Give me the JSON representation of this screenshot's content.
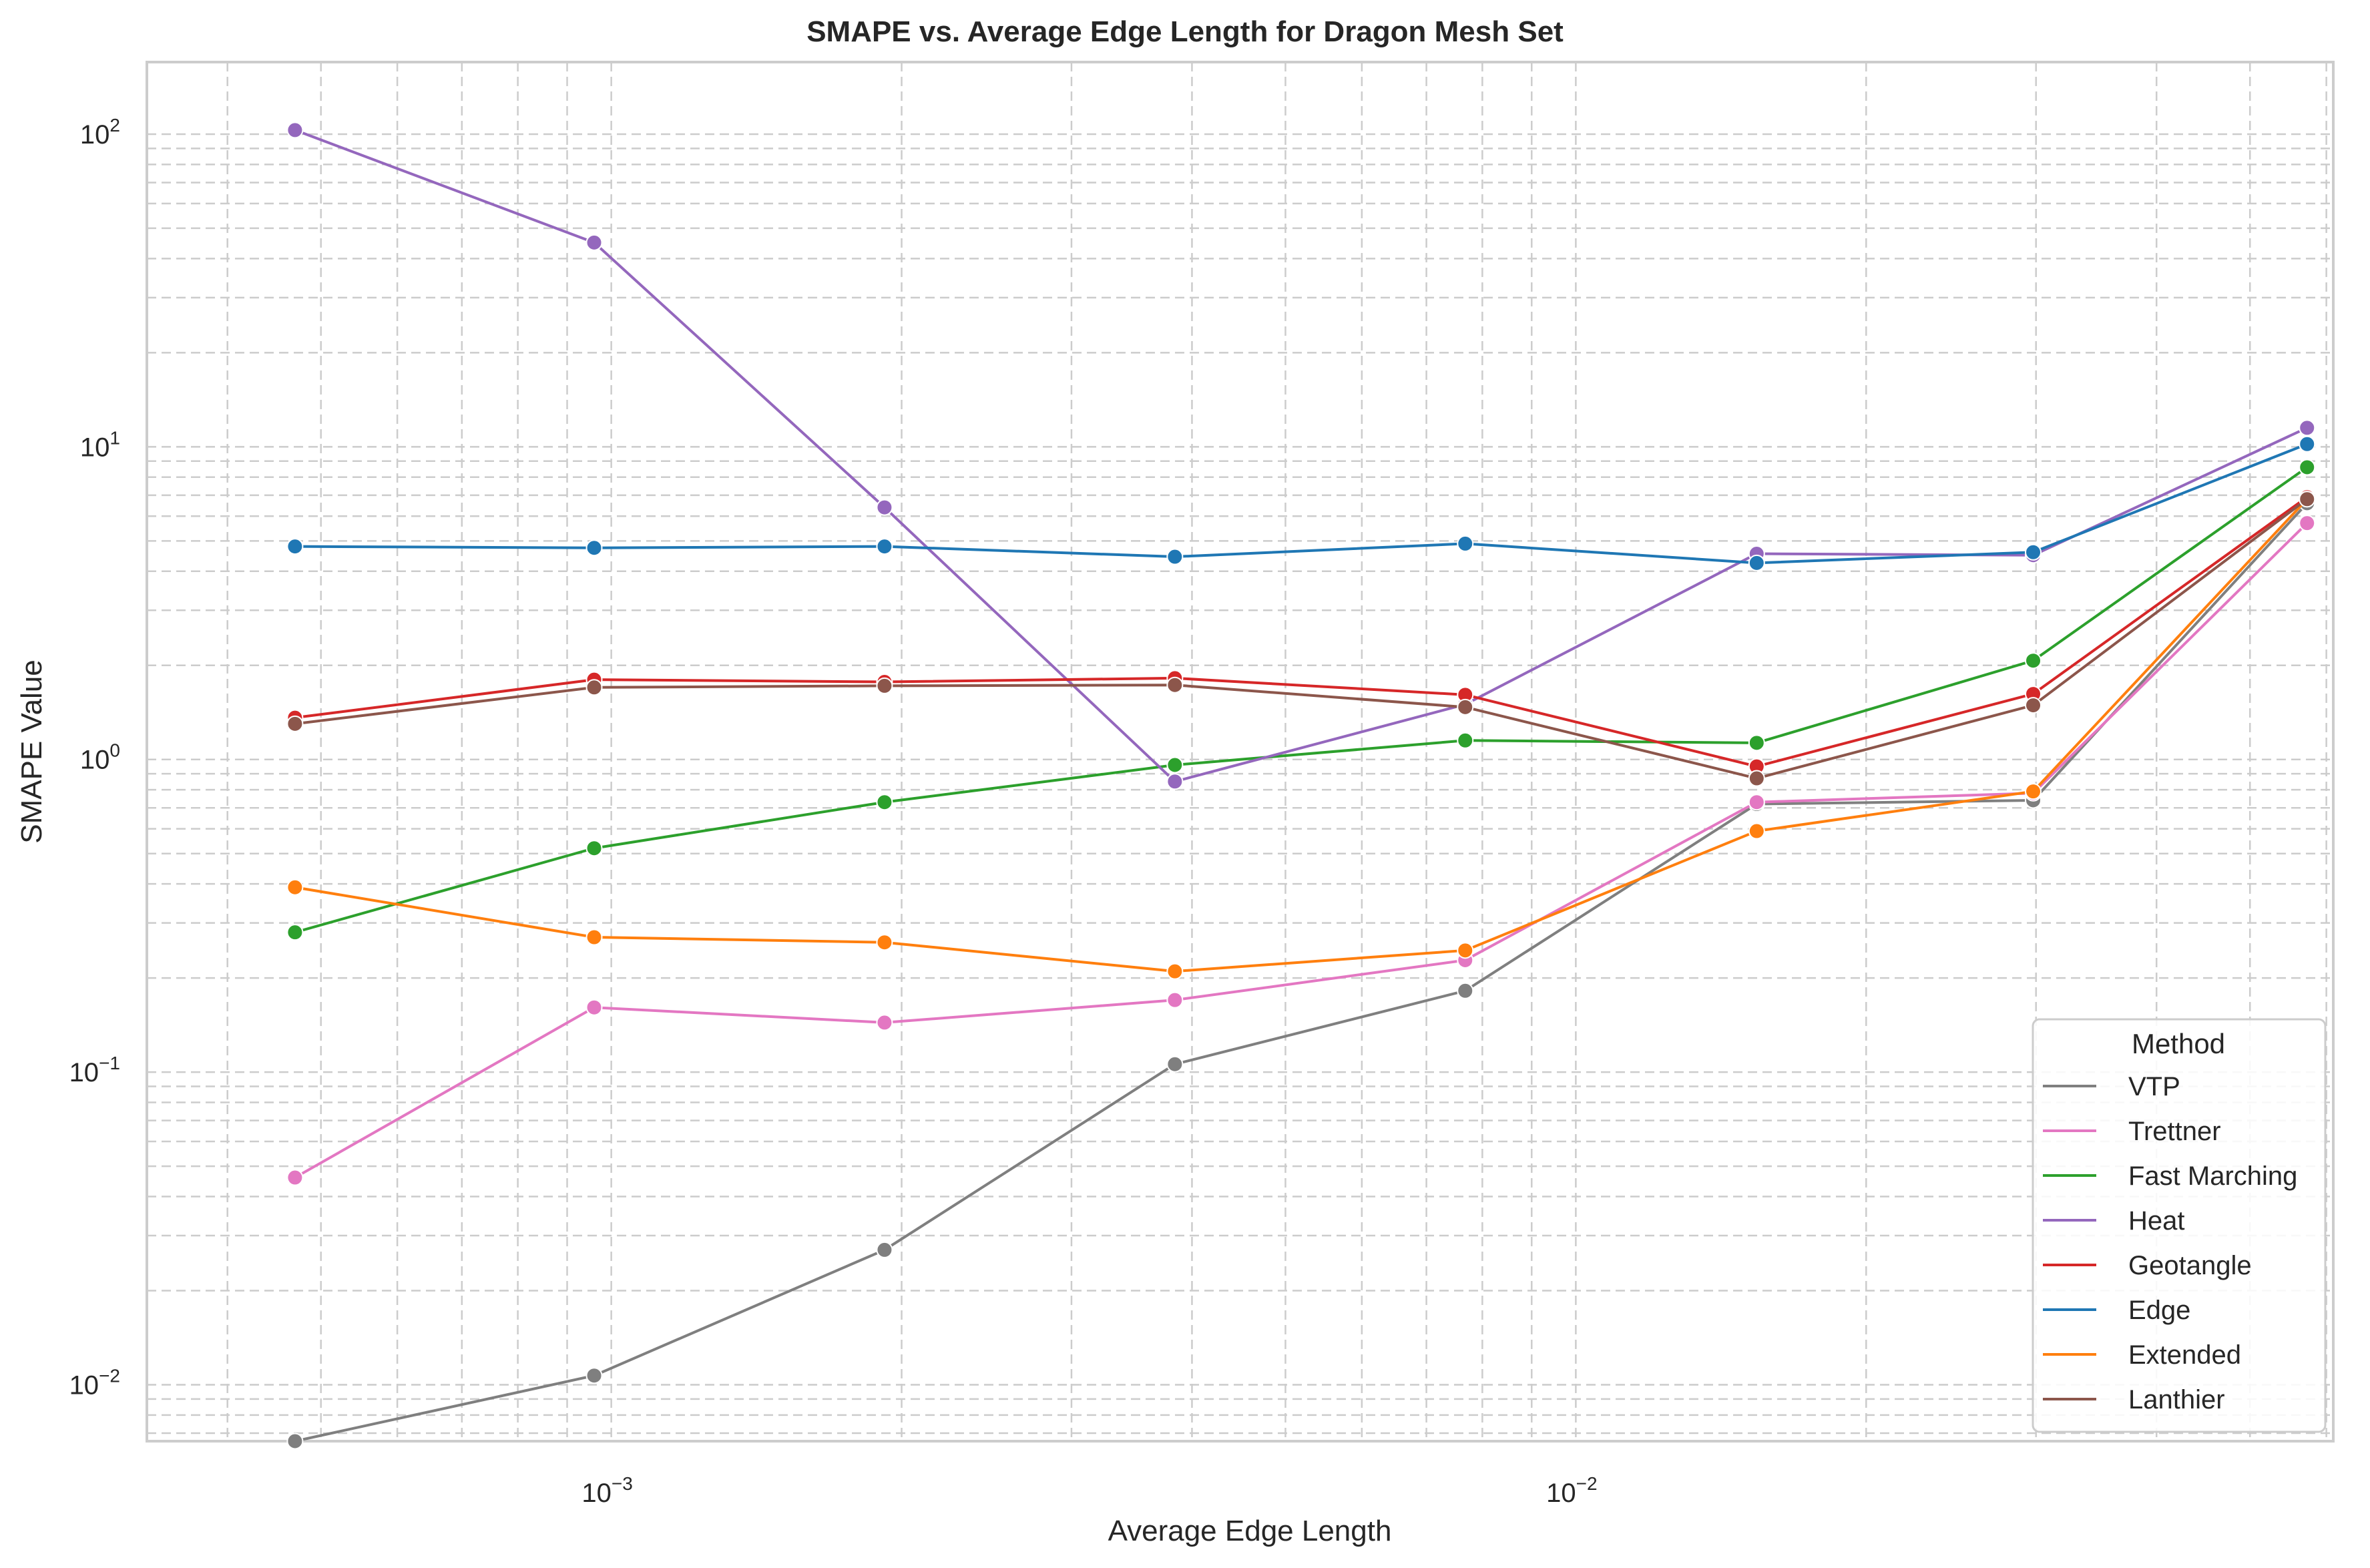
{
  "chart_data": {
    "type": "line",
    "title": "SMAPE vs. Average Edge Length for Dragon Mesh Set",
    "xlabel": "Average Edge Length",
    "ylabel": "SMAPE Value",
    "xscale": "log",
    "yscale": "log",
    "xlim": [
      0.00033,
      0.061
    ],
    "ylim": [
      0.0066,
      170
    ],
    "x_ticks": [
      {
        "value": 0.001,
        "base": "10",
        "exp": "−3"
      },
      {
        "value": 0.01,
        "base": "10",
        "exp": "−2"
      }
    ],
    "y_ticks": [
      {
        "value": 0.01,
        "base": "10",
        "exp": "−2"
      },
      {
        "value": 0.1,
        "base": "10",
        "exp": "−1"
      },
      {
        "value": 1,
        "base": "10",
        "exp": "0"
      },
      {
        "value": 10,
        "base": "10",
        "exp": "1"
      },
      {
        "value": 100,
        "base": "10",
        "exp": "2"
      }
    ],
    "grid": true,
    "legend": {
      "title": "Method",
      "position": "lower-right"
    },
    "x": [
      0.00047,
      0.00096,
      0.00192,
      0.00384,
      0.00768,
      0.0154,
      0.0298,
      0.0573
    ],
    "series": [
      {
        "name": "VTP",
        "color": "#7f7f7f",
        "values": [
          0.0066,
          0.0107,
          0.027,
          0.106,
          0.182,
          0.72,
          0.74,
          6.6
        ]
      },
      {
        "name": "Trettner",
        "color": "#e377c2",
        "values": [
          0.046,
          0.161,
          0.144,
          0.17,
          0.228,
          0.73,
          0.78,
          5.7
        ]
      },
      {
        "name": "Fast Marching",
        "color": "#2ca02c",
        "values": [
          0.28,
          0.52,
          0.73,
          0.96,
          1.15,
          1.13,
          2.07,
          8.6
        ]
      },
      {
        "name": "Heat",
        "color": "#9467bd",
        "values": [
          103,
          45,
          6.4,
          0.85,
          1.5,
          4.55,
          4.5,
          11.5
        ]
      },
      {
        "name": "Geotangle",
        "color": "#d62728",
        "values": [
          1.36,
          1.8,
          1.77,
          1.82,
          1.61,
          0.95,
          1.62,
          6.9
        ]
      },
      {
        "name": "Edge",
        "color": "#1f77b4",
        "values": [
          4.8,
          4.75,
          4.8,
          4.45,
          4.9,
          4.25,
          4.6,
          10.2
        ]
      },
      {
        "name": "Extended",
        "color": "#ff7f0e",
        "values": [
          0.39,
          0.27,
          0.26,
          0.21,
          0.245,
          0.59,
          0.79,
          6.8
        ]
      },
      {
        "name": "Lanthier",
        "color": "#8c564b",
        "values": [
          1.3,
          1.7,
          1.72,
          1.73,
          1.47,
          0.87,
          1.49,
          6.8
        ]
      }
    ]
  }
}
